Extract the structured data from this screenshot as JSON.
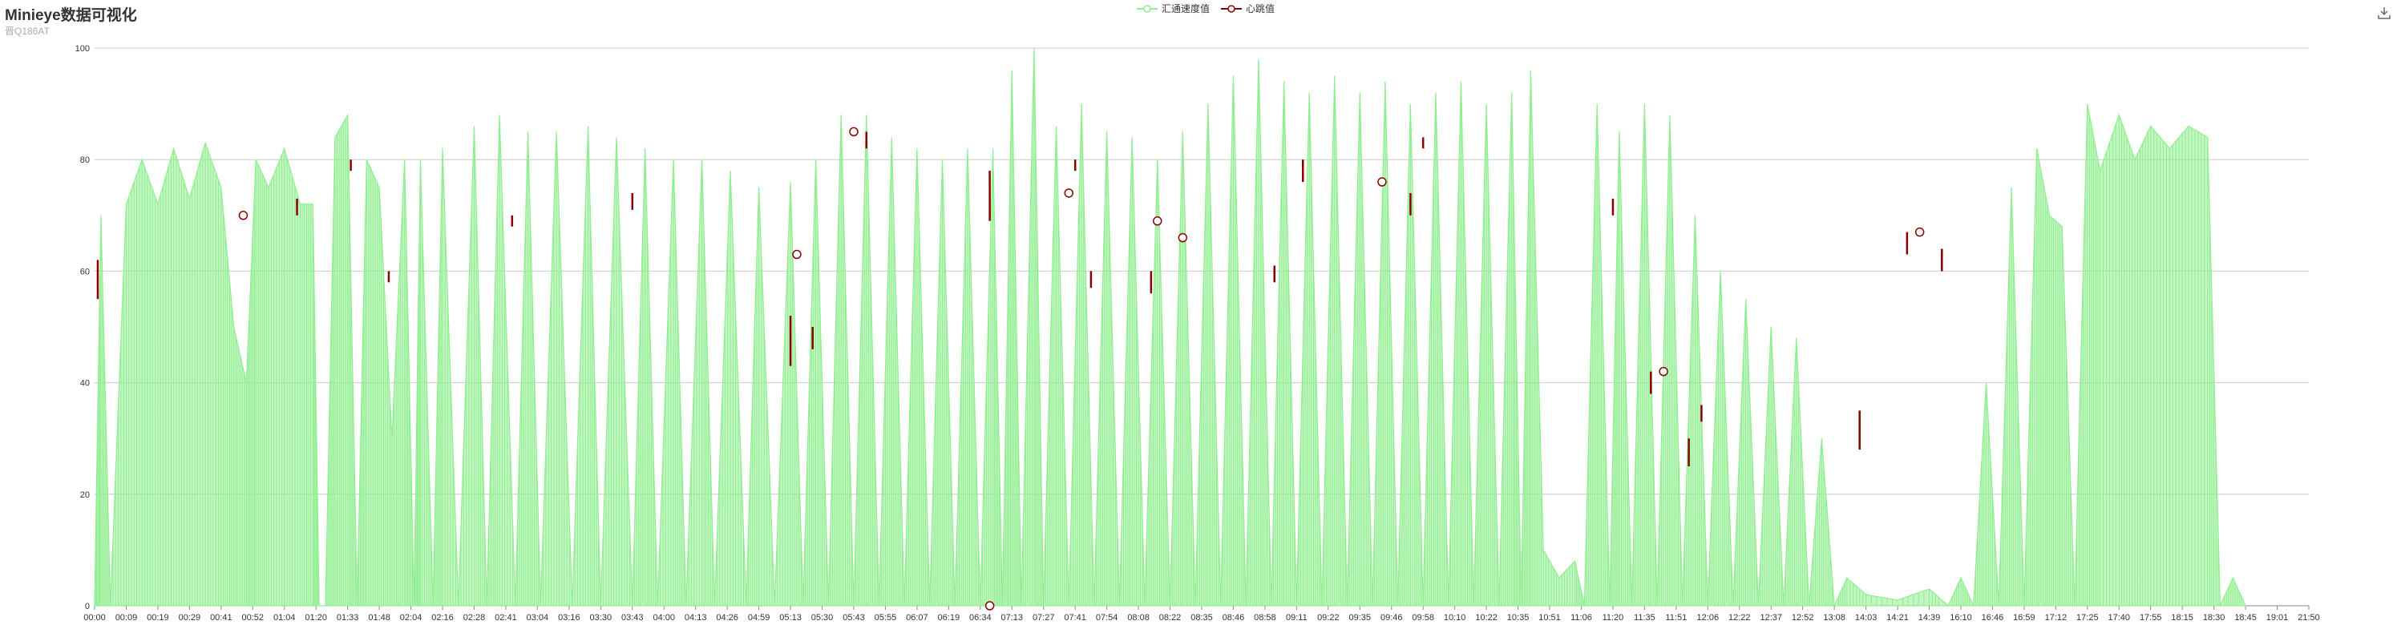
{
  "header": {
    "title": "Minieye数据可视化",
    "subtitle": "晋Q186AT"
  },
  "toolbar": {
    "download_icon": "download-icon"
  },
  "colors": {
    "speed": "#90ee90",
    "heartbeat": "#8b0000",
    "grid": "#cccccc",
    "axis": "#333333"
  },
  "chart_data": {
    "type": "line",
    "title": "Minieye数据可视化",
    "subtitle": "晋Q186AT",
    "legend": [
      "汇通速度值",
      "心跳值"
    ],
    "legend_position": "top-center",
    "ylim": [
      0,
      100
    ],
    "yticks": [
      0,
      20,
      40,
      60,
      80,
      100
    ],
    "grid": true,
    "xticks": [
      "00:00",
      "00:09",
      "00:19",
      "00:29",
      "00:41",
      "00:52",
      "01:04",
      "01:20",
      "01:33",
      "01:48",
      "02:04",
      "02:16",
      "02:28",
      "02:41",
      "03:04",
      "03:16",
      "03:30",
      "03:43",
      "04:00",
      "04:13",
      "04:26",
      "04:59",
      "05:13",
      "05:30",
      "05:43",
      "05:55",
      "06:07",
      "06:19",
      "06:34",
      "07:13",
      "07:27",
      "07:41",
      "07:54",
      "08:08",
      "08:22",
      "08:35",
      "08:46",
      "08:58",
      "09:11",
      "09:22",
      "09:35",
      "09:46",
      "09:58",
      "10:10",
      "10:22",
      "10:35",
      "10:51",
      "11:06",
      "11:20",
      "11:35",
      "11:51",
      "12:06",
      "12:22",
      "12:37",
      "12:52",
      "13:08",
      "14:03",
      "14:21",
      "14:39",
      "16:10",
      "16:46",
      "16:59",
      "17:12",
      "17:25",
      "17:40",
      "17:55",
      "18:15",
      "18:30",
      "18:45",
      "19:01",
      "21:50"
    ],
    "series": [
      {
        "name": "汇通速度值",
        "type": "line",
        "envelope": [
          [
            0,
            0
          ],
          [
            0.2,
            70
          ],
          [
            0.5,
            0
          ],
          [
            1,
            72
          ],
          [
            1.5,
            80
          ],
          [
            2,
            72
          ],
          [
            2.5,
            82
          ],
          [
            3,
            73
          ],
          [
            3.5,
            83
          ],
          [
            4,
            75
          ],
          [
            4.4,
            50
          ],
          [
            4.8,
            40
          ],
          [
            5.1,
            80
          ],
          [
            5.5,
            75
          ],
          [
            6,
            82
          ],
          [
            6.5,
            72
          ],
          [
            6.9,
            72
          ],
          [
            7.1,
            0
          ],
          [
            7.3,
            0
          ],
          [
            7.6,
            84
          ],
          [
            8,
            88
          ],
          [
            8.3,
            0
          ],
          [
            8.6,
            80
          ],
          [
            9,
            75
          ],
          [
            9.4,
            30
          ],
          [
            9.8,
            80
          ],
          [
            10.1,
            0
          ],
          [
            10.3,
            80
          ],
          [
            10.7,
            0
          ],
          [
            11,
            82
          ],
          [
            11.5,
            0
          ],
          [
            12,
            86
          ],
          [
            12.4,
            0
          ],
          [
            12.8,
            88
          ],
          [
            13.3,
            0
          ],
          [
            13.7,
            85
          ],
          [
            14.1,
            0
          ],
          [
            14.6,
            85
          ],
          [
            15.1,
            0
          ],
          [
            15.6,
            86
          ],
          [
            16,
            0
          ],
          [
            16.5,
            84
          ],
          [
            17,
            0
          ],
          [
            17.4,
            82
          ],
          [
            17.8,
            0
          ],
          [
            18.3,
            80
          ],
          [
            18.7,
            0
          ],
          [
            19.2,
            80
          ],
          [
            19.6,
            0
          ],
          [
            20.1,
            78
          ],
          [
            20.6,
            0
          ],
          [
            21,
            75
          ],
          [
            21.5,
            0
          ],
          [
            22,
            76
          ],
          [
            22.4,
            0
          ],
          [
            22.8,
            80
          ],
          [
            23.2,
            0
          ],
          [
            23.6,
            88
          ],
          [
            24,
            0
          ],
          [
            24.4,
            88
          ],
          [
            24.8,
            0
          ],
          [
            25.2,
            84
          ],
          [
            25.6,
            0
          ],
          [
            26,
            82
          ],
          [
            26.4,
            0
          ],
          [
            26.8,
            80
          ],
          [
            27.2,
            0
          ],
          [
            27.6,
            82
          ],
          [
            28,
            0
          ],
          [
            28.4,
            82
          ],
          [
            28.7,
            0
          ],
          [
            29,
            96
          ],
          [
            29.3,
            0
          ],
          [
            29.7,
            100
          ],
          [
            30,
            0
          ],
          [
            30.4,
            86
          ],
          [
            30.8,
            0
          ],
          [
            31.2,
            90
          ],
          [
            31.6,
            0
          ],
          [
            32,
            85
          ],
          [
            32.4,
            0
          ],
          [
            32.8,
            84
          ],
          [
            33.2,
            0
          ],
          [
            33.6,
            80
          ],
          [
            34,
            0
          ],
          [
            34.4,
            85
          ],
          [
            34.8,
            0
          ],
          [
            35.2,
            90
          ],
          [
            35.6,
            0
          ],
          [
            36,
            95
          ],
          [
            36.4,
            0
          ],
          [
            36.8,
            98
          ],
          [
            37.2,
            0
          ],
          [
            37.6,
            94
          ],
          [
            38,
            0
          ],
          [
            38.4,
            92
          ],
          [
            38.8,
            0
          ],
          [
            39.2,
            95
          ],
          [
            39.6,
            0
          ],
          [
            40,
            92
          ],
          [
            40.4,
            0
          ],
          [
            40.8,
            94
          ],
          [
            41.2,
            0
          ],
          [
            41.6,
            90
          ],
          [
            42,
            0
          ],
          [
            42.4,
            92
          ],
          [
            42.8,
            0
          ],
          [
            43.2,
            94
          ],
          [
            43.6,
            0
          ],
          [
            44,
            90
          ],
          [
            44.4,
            0
          ],
          [
            44.8,
            92
          ],
          [
            45.1,
            0
          ],
          [
            45.4,
            96
          ],
          [
            45.8,
            10
          ],
          [
            46.3,
            5
          ],
          [
            46.8,
            8
          ],
          [
            47.1,
            0
          ],
          [
            47.5,
            90
          ],
          [
            47.9,
            0
          ],
          [
            48.2,
            85
          ],
          [
            48.6,
            0
          ],
          [
            49,
            90
          ],
          [
            49.4,
            0
          ],
          [
            49.8,
            88
          ],
          [
            50.2,
            0
          ],
          [
            50.6,
            70
          ],
          [
            51,
            0
          ],
          [
            51.4,
            60
          ],
          [
            51.8,
            0
          ],
          [
            52.2,
            55
          ],
          [
            52.6,
            0
          ],
          [
            53,
            50
          ],
          [
            53.4,
            0
          ],
          [
            53.8,
            48
          ],
          [
            54.2,
            0
          ],
          [
            54.6,
            30
          ],
          [
            55,
            0
          ],
          [
            55.4,
            5
          ],
          [
            56,
            2
          ],
          [
            57,
            1
          ],
          [
            58,
            3
          ],
          [
            58.6,
            0
          ],
          [
            59,
            5
          ],
          [
            59.4,
            0
          ],
          [
            59.8,
            40
          ],
          [
            60.2,
            0
          ],
          [
            60.6,
            75
          ],
          [
            61,
            0
          ],
          [
            61.4,
            82
          ],
          [
            61.8,
            70
          ],
          [
            62.2,
            68
          ],
          [
            62.6,
            0
          ],
          [
            63,
            90
          ],
          [
            63.4,
            78
          ],
          [
            64,
            88
          ],
          [
            64.5,
            80
          ],
          [
            65,
            86
          ],
          [
            65.6,
            82
          ],
          [
            66.2,
            86
          ],
          [
            66.8,
            84
          ],
          [
            67.2,
            0
          ],
          [
            67.6,
            5
          ],
          [
            68,
            0
          ]
        ]
      },
      {
        "name": "心跳值",
        "type": "line",
        "markers": [
          {
            "x": 4.7,
            "y": 70
          },
          {
            "x": 22.2,
            "y": 63
          },
          {
            "x": 24,
            "y": 85
          },
          {
            "x": 28.3,
            "y": 0
          },
          {
            "x": 30.8,
            "y": 74
          },
          {
            "x": 33.6,
            "y": 69
          },
          {
            "x": 34.4,
            "y": 66
          },
          {
            "x": 40.7,
            "y": 76
          },
          {
            "x": 49.6,
            "y": 42
          },
          {
            "x": 57.7,
            "y": 67
          }
        ],
        "bars": [
          [
            0.1,
            55,
            62
          ],
          [
            6.4,
            70,
            73
          ],
          [
            8.1,
            78,
            80
          ],
          [
            9.3,
            58,
            60
          ],
          [
            13.2,
            68,
            70
          ],
          [
            17,
            71,
            74
          ],
          [
            22,
            43,
            52
          ],
          [
            22.7,
            46,
            50
          ],
          [
            24.4,
            82,
            85
          ],
          [
            28.3,
            69,
            78
          ],
          [
            31,
            78,
            80
          ],
          [
            31.5,
            57,
            60
          ],
          [
            33.4,
            56,
            60
          ],
          [
            37.3,
            58,
            61
          ],
          [
            38.2,
            76,
            80
          ],
          [
            41.6,
            70,
            74
          ],
          [
            42,
            82,
            84
          ],
          [
            48,
            70,
            73
          ],
          [
            49.2,
            38,
            42
          ],
          [
            50.4,
            25,
            30
          ],
          [
            50.8,
            33,
            36
          ],
          [
            55.8,
            28,
            35
          ],
          [
            57.3,
            63,
            67
          ],
          [
            58.4,
            60,
            64
          ]
        ]
      }
    ]
  }
}
